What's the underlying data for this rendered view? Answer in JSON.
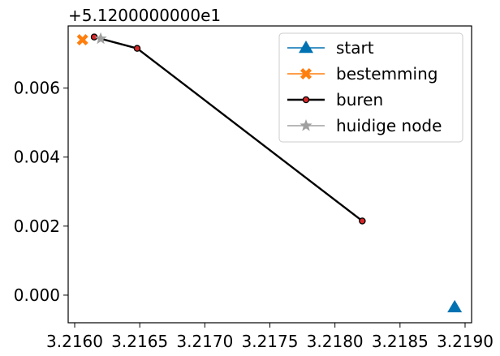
{
  "chart_data": {
    "type": "line",
    "title": "",
    "xlabel": "",
    "ylabel": "",
    "y_offset_label": "+5.1200000000e1",
    "xlim": [
      3.21595,
      3.21905
    ],
    "ylim": [
      -0.0008,
      0.0078
    ],
    "x_ticks": [
      3.216,
      3.2165,
      3.217,
      3.2175,
      3.218,
      3.2185,
      3.219
    ],
    "x_tick_labels": [
      "3.2160",
      "3.2165",
      "3.2170",
      "3.2175",
      "3.2180",
      "3.2185",
      "3.2190"
    ],
    "y_ticks": [
      0.0,
      0.002,
      0.004,
      0.006
    ],
    "y_tick_labels": [
      "0.000",
      "0.002",
      "0.004",
      "0.006"
    ],
    "grid": false,
    "legend_position": "top-right",
    "series": [
      {
        "name": "start",
        "color": "#0072b2",
        "marker": "triangle-up",
        "line": false,
        "points": [
          [
            3.21892,
            -0.00035
          ]
        ]
      },
      {
        "name": "bestemming",
        "color": "#ff7f0e",
        "marker": "x-filled",
        "line": false,
        "points": [
          [
            3.21606,
            0.0074
          ]
        ]
      },
      {
        "name": "buren",
        "color": "#000000",
        "marker_face": "#d62728",
        "marker": "circle",
        "line": true,
        "points": [
          [
            3.21615,
            0.00748
          ],
          [
            3.21648,
            0.00715
          ],
          [
            3.21821,
            0.00215
          ]
        ]
      },
      {
        "name": "huidige node",
        "color": "#a0a0a0",
        "marker": "star",
        "line": false,
        "points": [
          [
            3.2162,
            0.00743
          ]
        ]
      }
    ]
  }
}
